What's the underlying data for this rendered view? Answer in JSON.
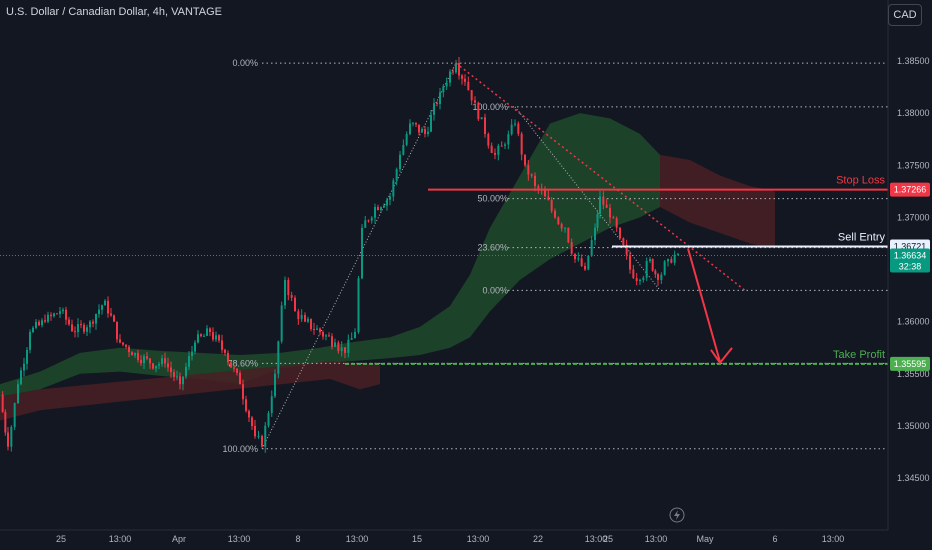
{
  "header": {
    "title": "U.S. Dollar / Canadian Dollar, 4h, VANTAGE",
    "currency": "CAD"
  },
  "colors": {
    "background": "#131722",
    "bull": "#089981",
    "bear": "#f23645",
    "cloud_bull": "#1e4a2a",
    "cloud_bear": "#4a1e24",
    "stop": "#f23645",
    "entry": "#e9f1ff",
    "target": "#4caf50"
  },
  "chart_data": {
    "type": "candlestick",
    "symbol": "USDCAD",
    "timeframe": "4h",
    "y_ticks": [
      "1.38500",
      "1.38000",
      "1.37500",
      "1.37000",
      "1.36500",
      "1.36000",
      "1.35500",
      "1.35000",
      "1.34500"
    ],
    "x_ticks": [
      "25",
      "13:00",
      "Apr",
      "13:00",
      "8",
      "13:00",
      "15",
      "13:00",
      "22",
      "13:00",
      "25",
      "13:00",
      "May",
      "6",
      "13:00"
    ],
    "price_path": [
      [
        0,
        1.353
      ],
      [
        8,
        1.348
      ],
      [
        18,
        1.354
      ],
      [
        30,
        1.359
      ],
      [
        45,
        1.36
      ],
      [
        60,
        1.361
      ],
      [
        75,
        1.359
      ],
      [
        90,
        1.36
      ],
      [
        105,
        1.362
      ],
      [
        120,
        1.358
      ],
      [
        135,
        1.357
      ],
      [
        150,
        1.356
      ],
      [
        165,
        1.356
      ],
      [
        180,
        1.354
      ],
      [
        195,
        1.358
      ],
      [
        210,
        1.359
      ],
      [
        225,
        1.357
      ],
      [
        240,
        1.354
      ],
      [
        255,
        1.349
      ],
      [
        262,
        1.348
      ],
      [
        275,
        1.355
      ],
      [
        285,
        1.364
      ],
      [
        295,
        1.361
      ],
      [
        305,
        1.36
      ],
      [
        320,
        1.359
      ],
      [
        335,
        1.358
      ],
      [
        345,
        1.357
      ],
      [
        355,
        1.359
      ],
      [
        362,
        1.369
      ],
      [
        375,
        1.371
      ],
      [
        390,
        1.372
      ],
      [
        400,
        1.376
      ],
      [
        410,
        1.379
      ],
      [
        425,
        1.378
      ],
      [
        440,
        1.382
      ],
      [
        450,
        1.384
      ],
      [
        456,
        1.3848
      ],
      [
        465,
        1.383
      ],
      [
        475,
        1.381
      ],
      [
        485,
        1.378
      ],
      [
        495,
        1.376
      ],
      [
        505,
        1.377
      ],
      [
        515,
        1.379
      ],
      [
        525,
        1.375
      ],
      [
        535,
        1.373
      ],
      [
        545,
        1.372
      ],
      [
        555,
        1.37
      ],
      [
        565,
        1.369
      ],
      [
        575,
        1.366
      ],
      [
        585,
        1.365
      ],
      [
        595,
        1.369
      ],
      [
        600,
        1.372
      ],
      [
        610,
        1.37
      ],
      [
        620,
        1.368
      ],
      [
        630,
        1.365
      ],
      [
        640,
        1.364
      ],
      [
        650,
        1.366
      ],
      [
        658,
        1.364
      ],
      [
        668,
        1.366
      ],
      [
        678,
        1.3665
      ]
    ],
    "levels": {
      "stop_loss": 1.37266,
      "sell_entry": 1.36721,
      "current": 1.36634,
      "take_profit": 1.35595
    },
    "fib_left": [
      {
        "label": "0.00%",
        "price": 1.3848
      },
      {
        "label": "78.60%",
        "price": 1.356
      },
      {
        "label": "100.00%",
        "price": 1.3478
      }
    ],
    "fib_right": [
      {
        "label": "100.00%",
        "price": 1.3806
      },
      {
        "label": "50.00%",
        "price": 1.3718
      },
      {
        "label": "23.60%",
        "price": 1.3671
      },
      {
        "label": "0.00%",
        "price": 1.363
      }
    ],
    "cloud": {
      "bull": [
        [
          0,
          1.3528,
          1.354
        ],
        [
          40,
          1.3535,
          1.3552
        ],
        [
          80,
          1.355,
          1.357
        ],
        [
          120,
          1.3552,
          1.3575
        ],
        [
          160,
          1.3548,
          1.3572
        ],
        [
          200,
          1.3545,
          1.357
        ],
        [
          240,
          1.354,
          1.3568
        ],
        [
          280,
          1.3555,
          1.357
        ],
        [
          320,
          1.356,
          1.3575
        ],
        [
          350,
          1.3562,
          1.358
        ],
        [
          390,
          1.3565,
          1.3585
        ],
        [
          420,
          1.3568,
          1.3595
        ],
        [
          450,
          1.3575,
          1.3615
        ],
        [
          470,
          1.3585,
          1.3645
        ],
        [
          490,
          1.361,
          1.369
        ],
        [
          520,
          1.364,
          1.374
        ],
        [
          550,
          1.366,
          1.379
        ],
        [
          580,
          1.3675,
          1.38
        ],
        [
          610,
          1.369,
          1.3795
        ],
        [
          640,
          1.37,
          1.378
        ],
        [
          660,
          1.371,
          1.376
        ]
      ],
      "bear": [
        [
          0,
          1.3505,
          1.3528
        ],
        [
          40,
          1.3515,
          1.3535
        ],
        [
          330,
          1.3545,
          1.3562
        ],
        [
          360,
          1.3535,
          1.356
        ],
        [
          380,
          1.354,
          1.356
        ]
      ],
      "bear_future": [
        [
          660,
          1.371,
          1.376
        ],
        [
          690,
          1.3695,
          1.3755
        ],
        [
          720,
          1.3685,
          1.374
        ],
        [
          750,
          1.3675,
          1.373
        ],
        [
          775,
          1.367,
          1.3725
        ]
      ]
    },
    "annotations": {
      "stop_label": "Stop Loss",
      "entry_label": "Sell Entry",
      "target_label": "Take Profit",
      "countdown": "32:38"
    },
    "price_labels": {
      "stop": "1.37266",
      "entry": "1.36721",
      "current": "1.36634",
      "target": "1.35595"
    }
  }
}
